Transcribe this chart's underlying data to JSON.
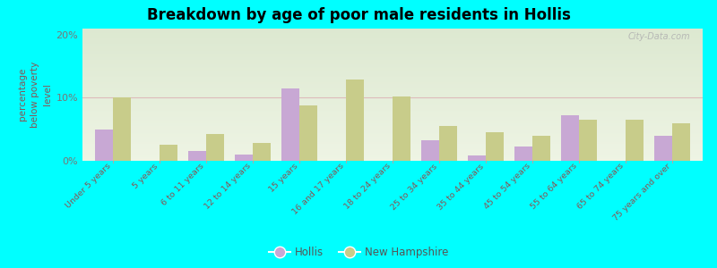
{
  "title": "Breakdown by age of poor male residents in Hollis",
  "categories": [
    "Under 5 years",
    "5 years",
    "6 to 11 years",
    "12 to 14 years",
    "15 years",
    "16 and 17 years",
    "18 to 24 years",
    "25 to 34 years",
    "35 to 44 years",
    "45 to 54 years",
    "55 to 64 years",
    "65 to 74 years",
    "75 years and over"
  ],
  "hollis_values": [
    5.0,
    0.0,
    1.5,
    1.0,
    11.5,
    0.0,
    0.0,
    3.2,
    0.8,
    2.2,
    7.2,
    0.0,
    4.0
  ],
  "nh_values": [
    10.0,
    2.5,
    4.3,
    2.8,
    8.8,
    12.8,
    10.2,
    5.5,
    4.5,
    4.0,
    6.5,
    6.5,
    6.0
  ],
  "hollis_color": "#c8a8d4",
  "nh_color": "#c8cc8a",
  "ylabel": "percentage\nbelow poverty\nlevel",
  "ylim": [
    0,
    21
  ],
  "yticks": [
    0,
    10,
    20
  ],
  "ytick_labels": [
    "0%",
    "10%",
    "20%"
  ],
  "bg_color_top": "#dce8d0",
  "bg_color_bottom": "#eef4e4",
  "outer_bg": "#00ffff",
  "bar_width": 0.38,
  "legend_hollis": "Hollis",
  "legend_nh": "New Hampshire",
  "watermark": "City-Data.com",
  "label_color": "#885555",
  "tick_color": "#777777",
  "grid_color": "#ddbbbb"
}
